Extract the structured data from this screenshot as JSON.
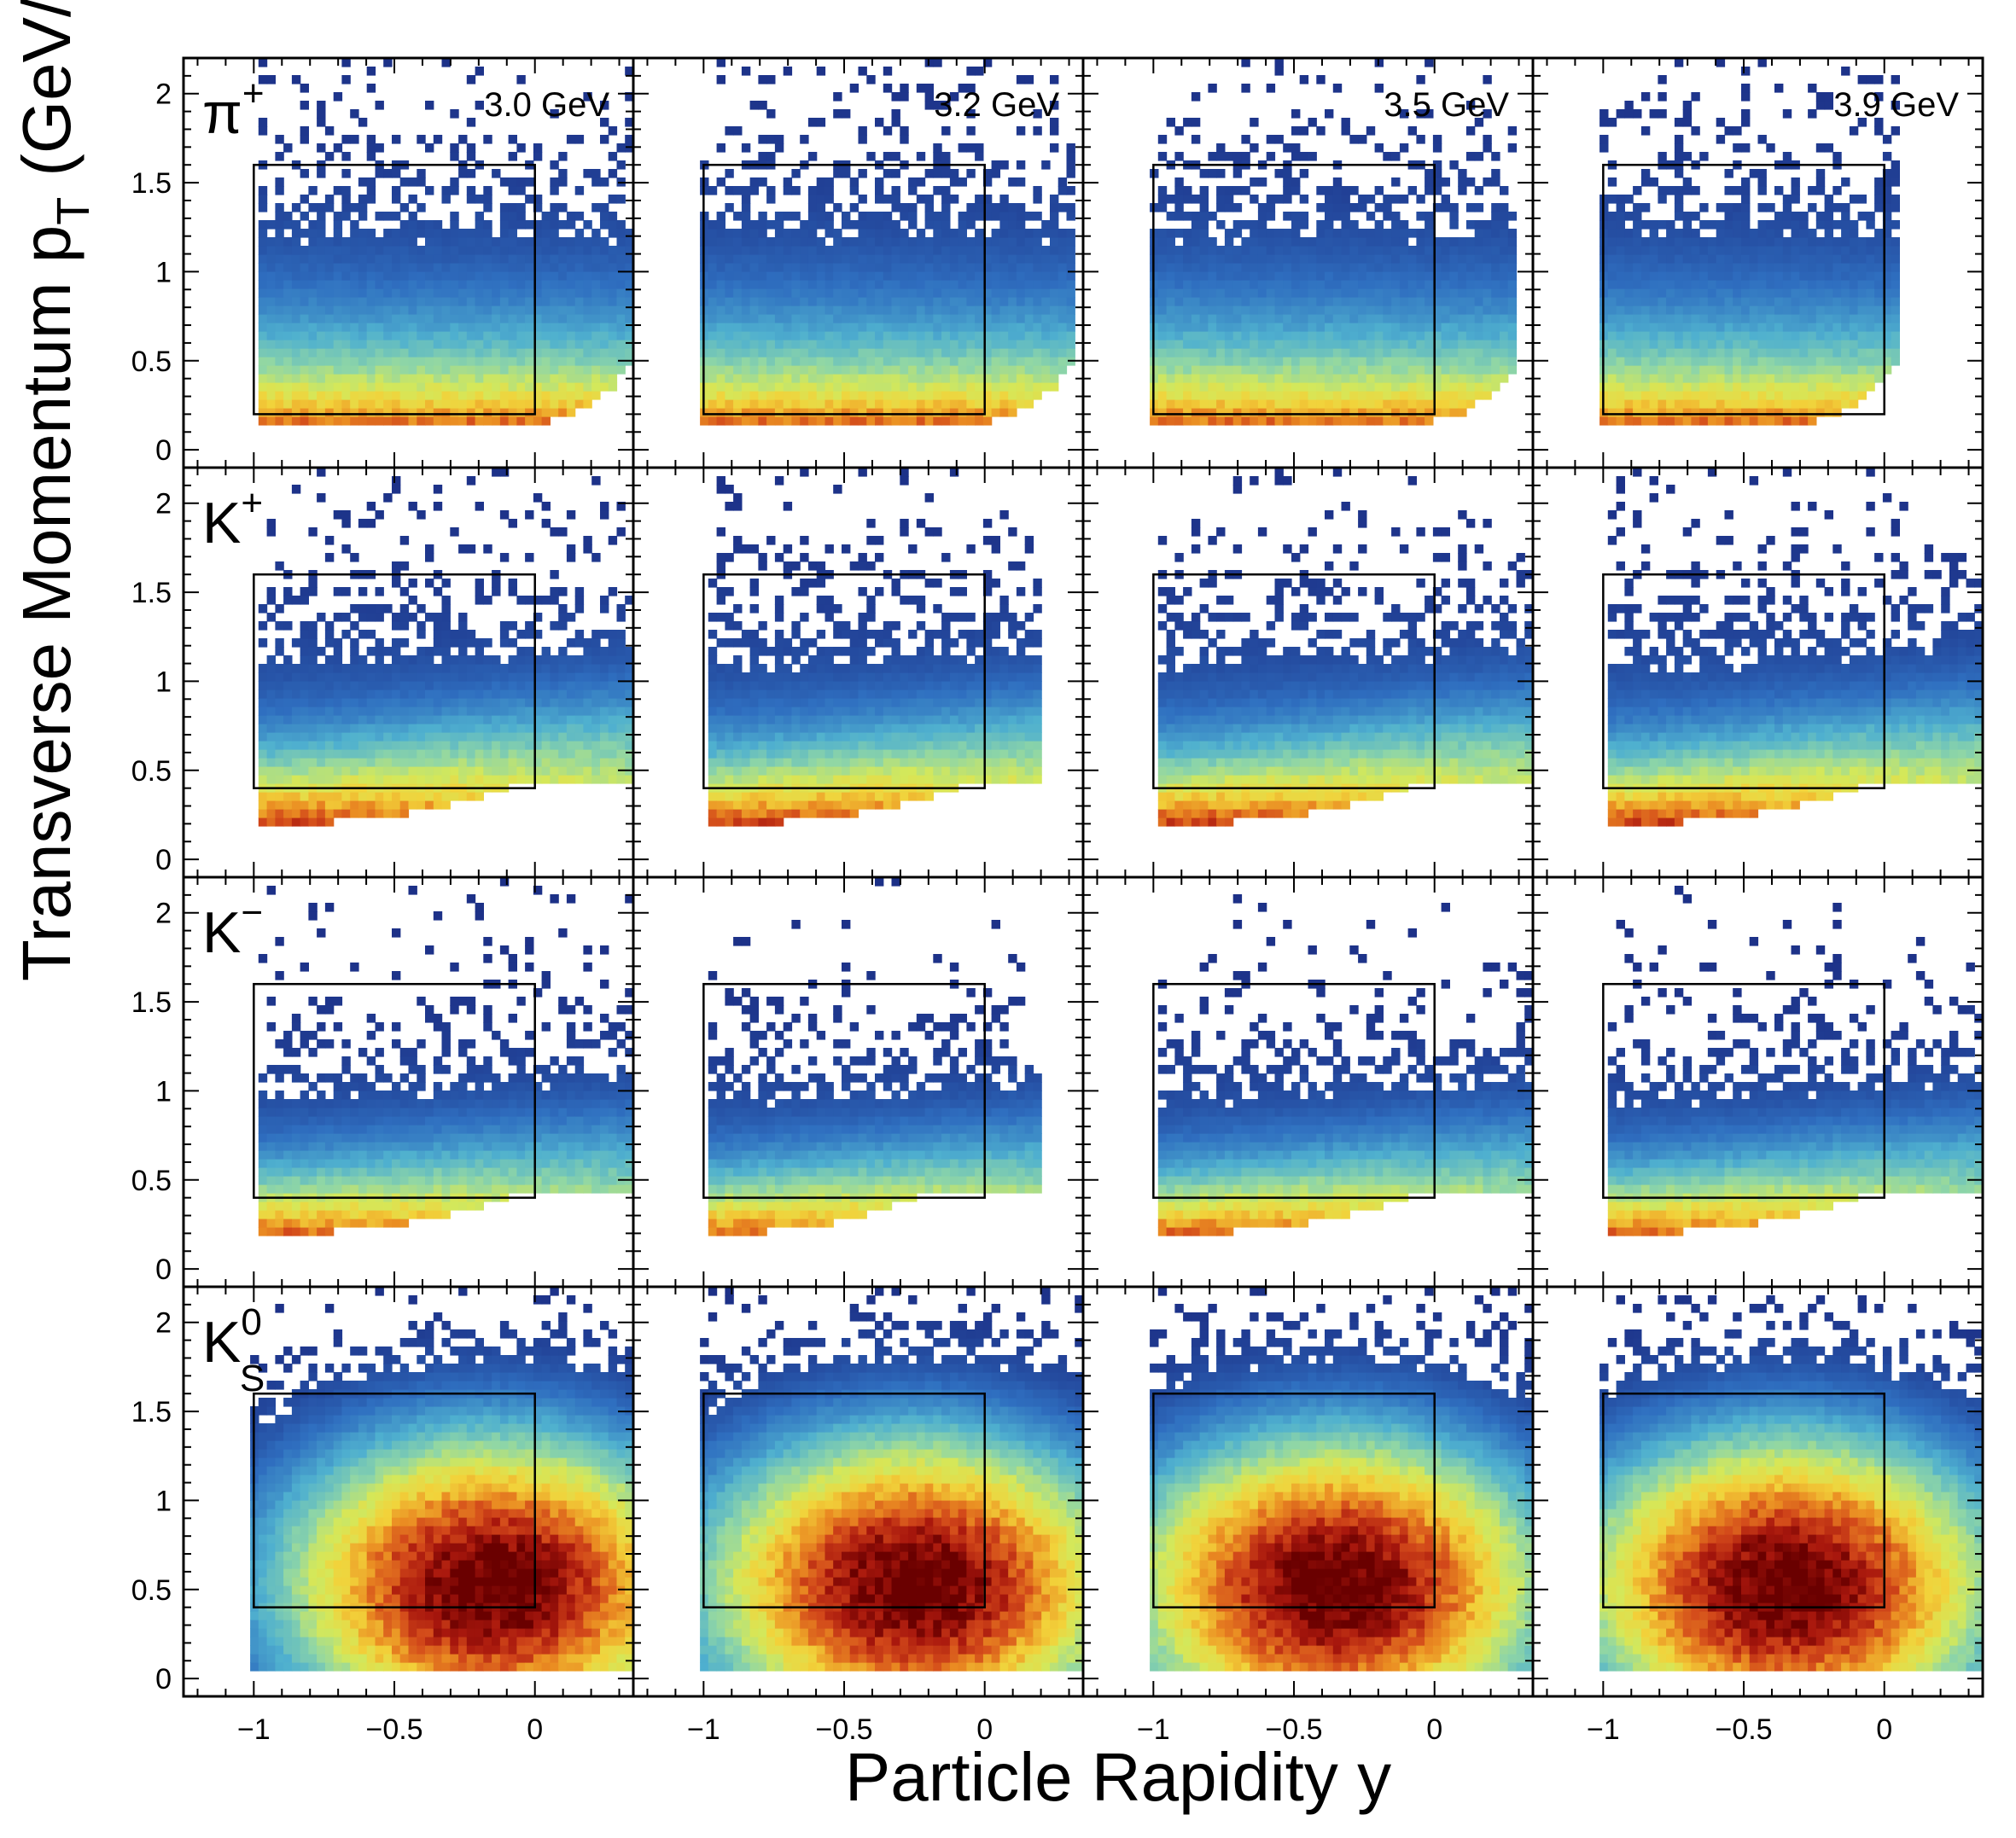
{
  "figure": {
    "xlabel": "Particle Rapidity y",
    "ylabel": "Transverse Momentum p",
    "ylabel_sub": "T",
    "ylabel_unit": "(GeV/c)"
  },
  "chart_data": {
    "type": "heatmap",
    "layout": "4x4 grid of 2D histograms (pT vs y), shared axes",
    "xlim": [
      -1.25,
      0.35
    ],
    "ylim": [
      -0.1,
      2.2
    ],
    "x_ticks": [
      -1,
      -0.5,
      0
    ],
    "x_tick_labels": [
      "−1",
      "−0.5",
      "0"
    ],
    "y_ticks": [
      0,
      0.5,
      1,
      1.5,
      2
    ],
    "y_tick_labels": [
      "0",
      "0.5",
      "1",
      "1.5",
      "2"
    ],
    "energies": [
      "3.0 GeV",
      "3.2 GeV",
      "3.5 GeV",
      "3.9 GeV"
    ],
    "colorscale": [
      "#1c2f86",
      "#2f6fc0",
      "#4fb0cf",
      "#8fd6a6",
      "#d4e85a",
      "#f2d23a",
      "#ea8c22",
      "#d2481a",
      "#a8170d",
      "#6a0000"
    ],
    "rows": [
      {
        "particle": "π",
        "particle_sup": "+",
        "particle_sub": "",
        "acceptance_box": {
          "y": [
            -1,
            0
          ],
          "pt": [
            0.2,
            1.6
          ]
        }
      },
      {
        "particle": "K",
        "particle_sup": "+",
        "particle_sub": "",
        "acceptance_box": {
          "y": [
            -1,
            0
          ],
          "pt": [
            0.4,
            1.6
          ]
        }
      },
      {
        "particle": "K",
        "particle_sup": "−",
        "particle_sub": "",
        "acceptance_box": {
          "y": [
            -1,
            0
          ],
          "pt": [
            0.4,
            1.6
          ]
        }
      },
      {
        "particle": "K",
        "particle_sup": "0",
        "particle_sub": "S",
        "acceptance_box": {
          "y": [
            -1,
            0
          ],
          "pt": [
            0.4,
            1.6
          ]
        }
      }
    ]
  }
}
